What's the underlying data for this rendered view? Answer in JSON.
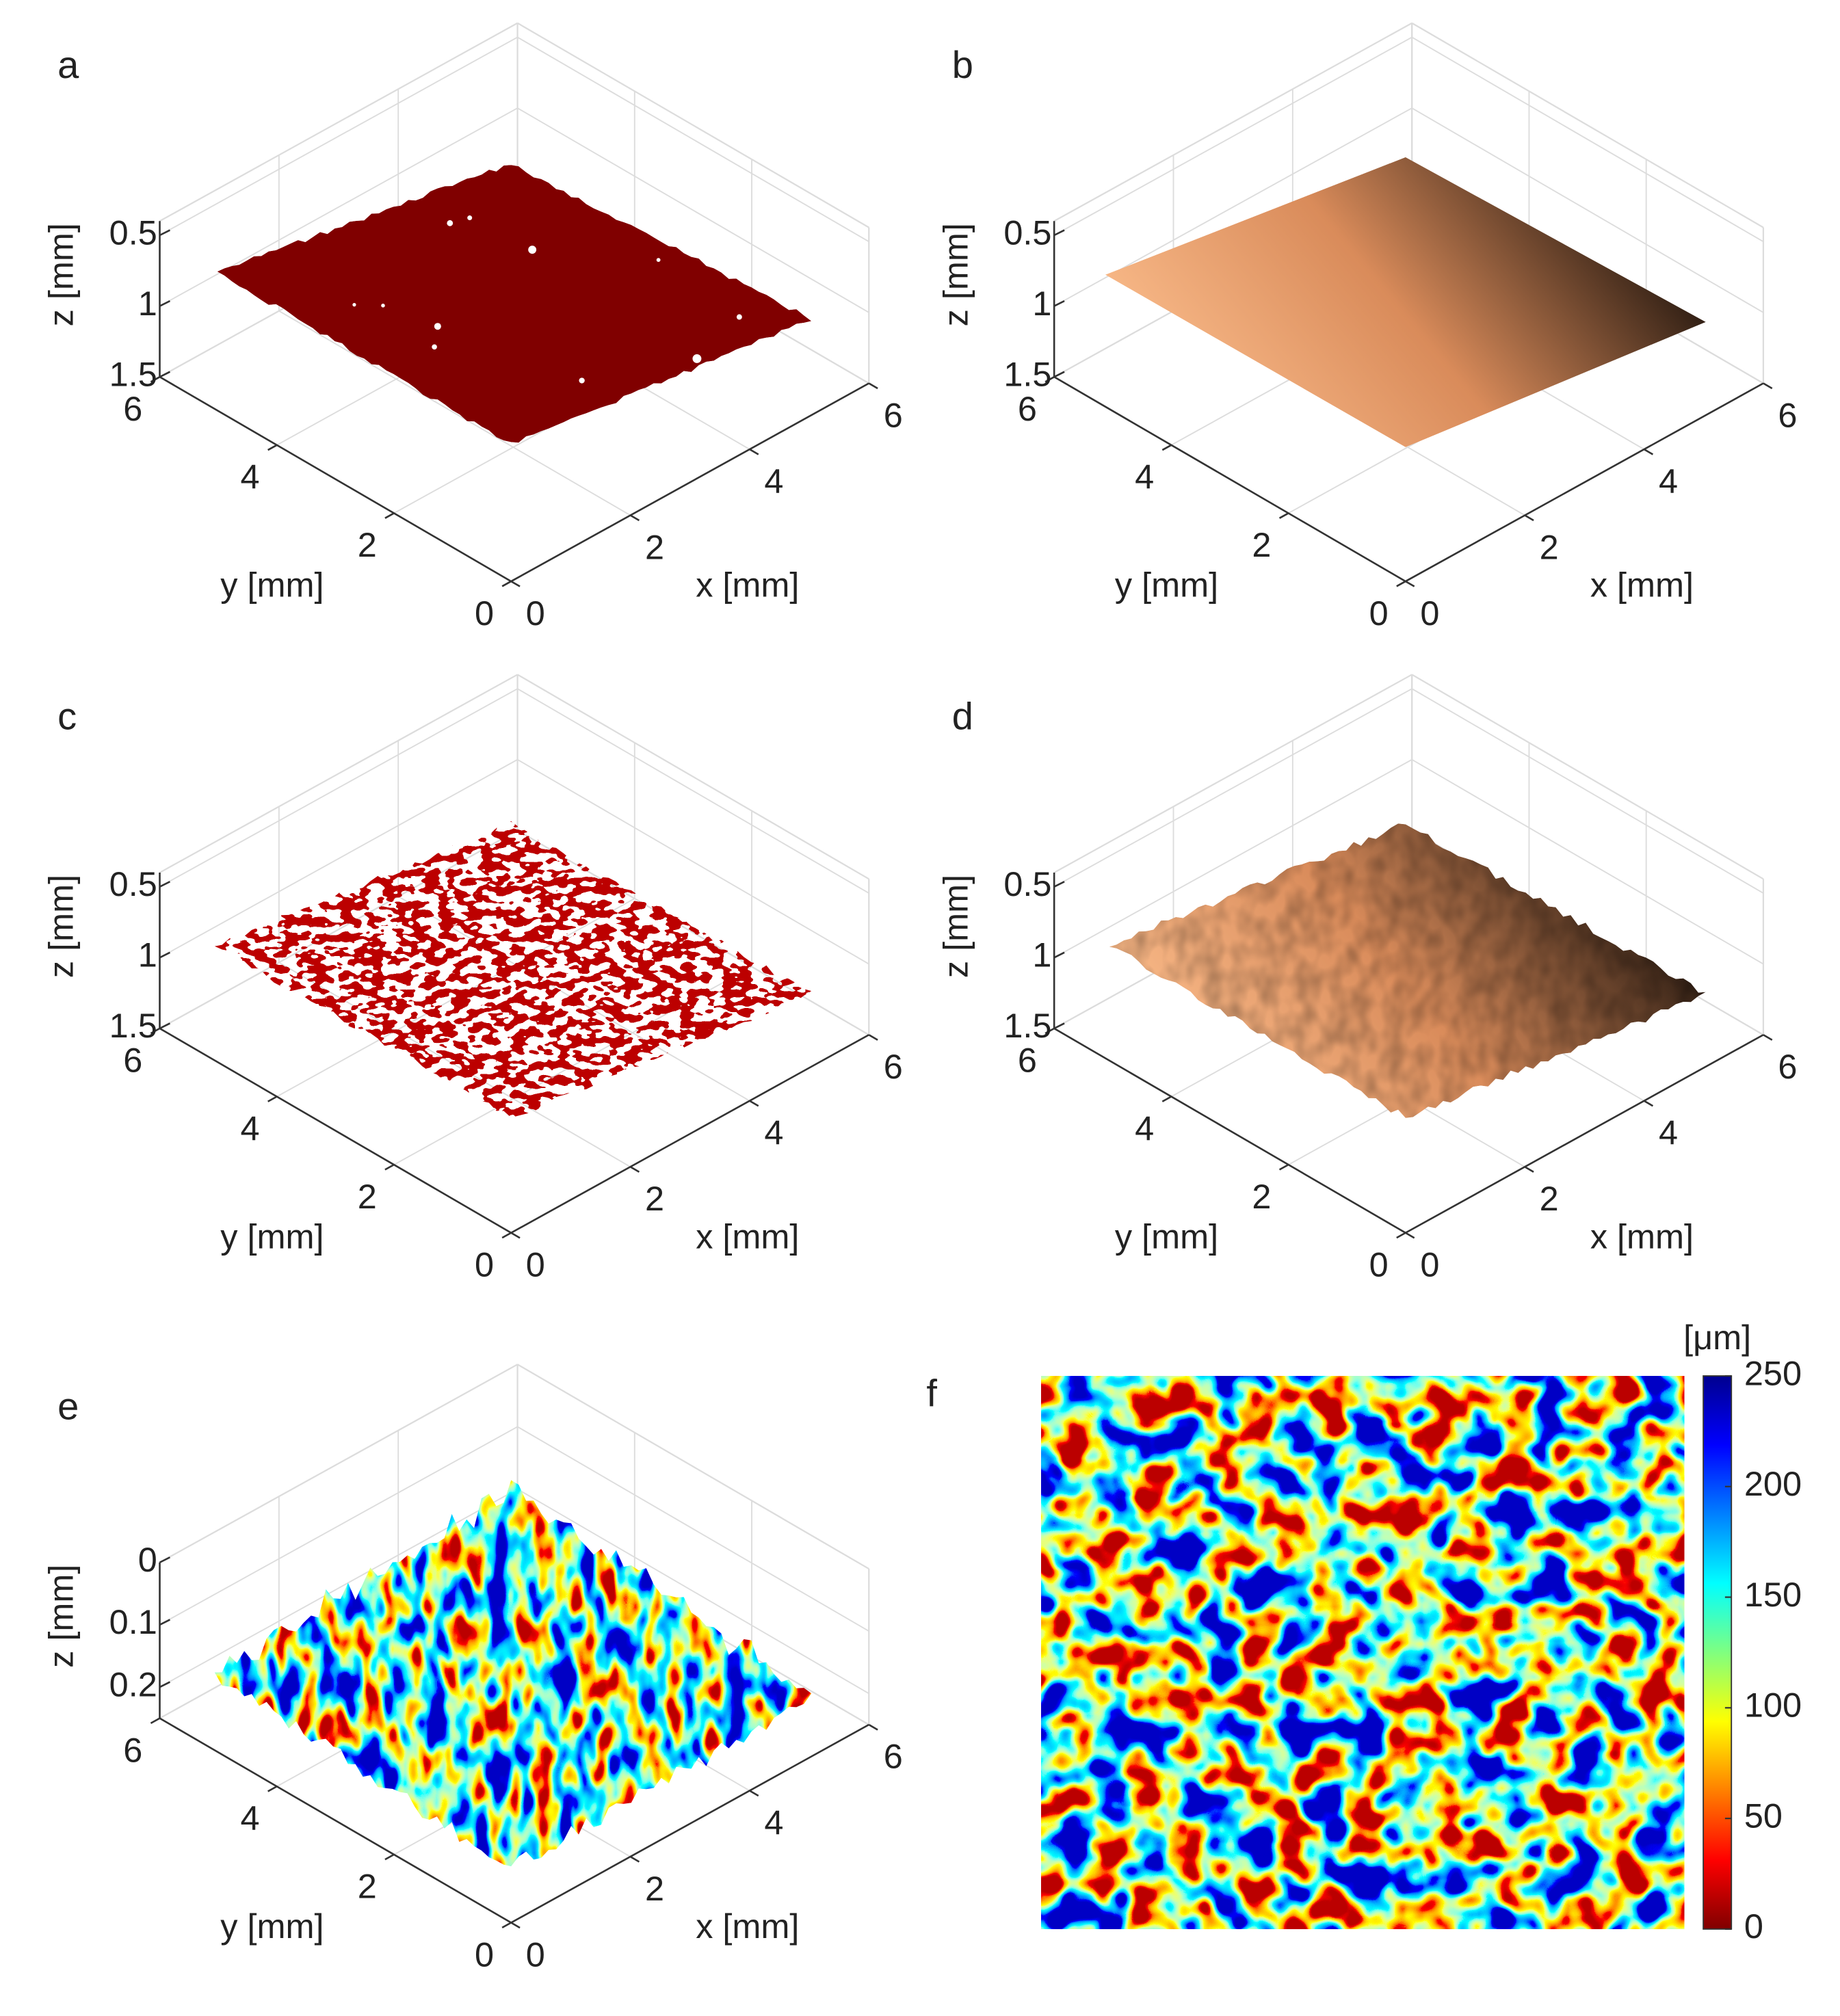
{
  "chart_data": [
    {
      "type": "surface3d",
      "panel_label": "a",
      "xlabel": "x [mm]",
      "ylabel": "y [mm]",
      "zlabel": "z [mm]",
      "xlim": [
        0,
        6
      ],
      "ylim": [
        0,
        6
      ],
      "zlim": [
        0.4,
        1.5
      ],
      "z_reversed": true,
      "xticks": [
        0,
        2,
        4,
        6
      ],
      "yticks": [
        0,
        2,
        4,
        6
      ],
      "zticks": [
        0.5,
        1,
        1.5
      ],
      "grid": true,
      "surface": "solid",
      "color": "#800000"
    },
    {
      "type": "surface3d",
      "panel_label": "b",
      "xlabel": "x [mm]",
      "ylabel": "y [mm]",
      "zlabel": "z [mm]",
      "xlim": [
        0,
        6
      ],
      "ylim": [
        0,
        6
      ],
      "zlim": [
        0.4,
        1.5
      ],
      "z_reversed": true,
      "xticks": [
        0,
        2,
        4,
        6
      ],
      "yticks": [
        0,
        2,
        4,
        6
      ],
      "zticks": [
        0.5,
        1,
        1.5
      ],
      "grid": true,
      "surface": "smooth",
      "colormap": "copper"
    },
    {
      "type": "surface3d",
      "panel_label": "c",
      "xlabel": "x [mm]",
      "ylabel": "y [mm]",
      "zlabel": "z [mm]",
      "xlim": [
        0,
        6
      ],
      "ylim": [
        0,
        6
      ],
      "zlim": [
        0.4,
        1.5
      ],
      "z_reversed": true,
      "xticks": [
        0,
        2,
        4,
        6
      ],
      "yticks": [
        0,
        2,
        4,
        6
      ],
      "zticks": [
        0.5,
        1,
        1.5
      ],
      "grid": true,
      "surface": "speckle",
      "color": "#800000"
    },
    {
      "type": "surface3d",
      "panel_label": "d",
      "xlabel": "x [mm]",
      "ylabel": "y [mm]",
      "zlabel": "z [mm]",
      "xlim": [
        0,
        6
      ],
      "ylim": [
        0,
        6
      ],
      "zlim": [
        0.4,
        1.5
      ],
      "z_reversed": true,
      "xticks": [
        0,
        2,
        4,
        6
      ],
      "yticks": [
        0,
        2,
        4,
        6
      ],
      "zticks": [
        0.5,
        1,
        1.5
      ],
      "grid": true,
      "surface": "bumpy",
      "colormap": "copper"
    },
    {
      "type": "surface3d",
      "panel_label": "e",
      "xlabel": "x [mm]",
      "ylabel": "y [mm]",
      "zlabel": "z [mm]",
      "xlim": [
        0,
        6
      ],
      "ylim": [
        0,
        6
      ],
      "zlim": [
        0,
        0.25
      ],
      "z_reversed": true,
      "xticks": [
        0,
        2,
        4,
        6
      ],
      "yticks": [
        0,
        2,
        4,
        6
      ],
      "zticks": [
        0,
        0.1,
        0.2
      ],
      "grid": true,
      "surface": "rough",
      "colormap": "jet"
    },
    {
      "type": "heatmap",
      "panel_label": "f",
      "colorbar_label": "[μm]",
      "clim": [
        0,
        250
      ],
      "cticks": [
        0,
        50,
        100,
        150,
        200,
        250
      ],
      "colormap": "jet_reversed"
    }
  ]
}
